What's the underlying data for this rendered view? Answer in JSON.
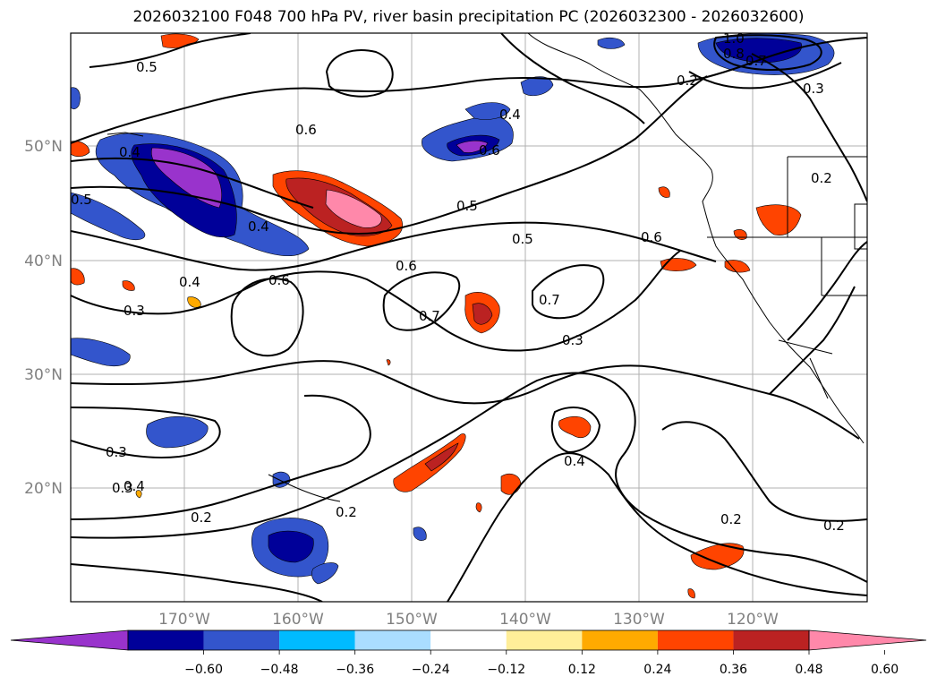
{
  "title": "2026032100 F048 700 hPa PV, river basin precipitation PC (2026032300 - 2026032600)",
  "axes": {
    "lon_labels": [
      "170°W",
      "160°W",
      "150°W",
      "140°W",
      "130°W",
      "120°W"
    ],
    "lat_labels": [
      "50°N",
      "40°N",
      "30°N",
      "20°N"
    ]
  },
  "contour_labels": [
    "1.0",
    "0.8",
    "0.7",
    "0.5",
    "0.4",
    "0.3",
    "0.2",
    "0.6",
    "0.4",
    "0.6",
    "0.5",
    "0.5",
    "0.4",
    "0.2",
    "0.5",
    "0.6",
    "0.6",
    "0.6",
    "0.7",
    "0.7",
    "0.4",
    "0.3",
    "0.3",
    "0.3",
    "0.3",
    "0.4",
    "0.2",
    "0.2",
    "0.4",
    "0.2",
    "0.2"
  ],
  "colorbar": {
    "ticks": [
      "−0.60",
      "−0.48",
      "−0.36",
      "−0.24",
      "−0.12",
      "0.12",
      "0.24",
      "0.36",
      "0.48",
      "0.60"
    ],
    "colors": [
      "#9933cc",
      "#000099",
      "#3355cc",
      "#00bbff",
      "#aaddff",
      "#ffffff",
      "#ffee99",
      "#ffaa00",
      "#ff4400",
      "#bb2222",
      "#ff88aa"
    ]
  },
  "colors": {
    "frame": "#000000",
    "grid": "#b0b0b0",
    "contour": "#000000"
  }
}
